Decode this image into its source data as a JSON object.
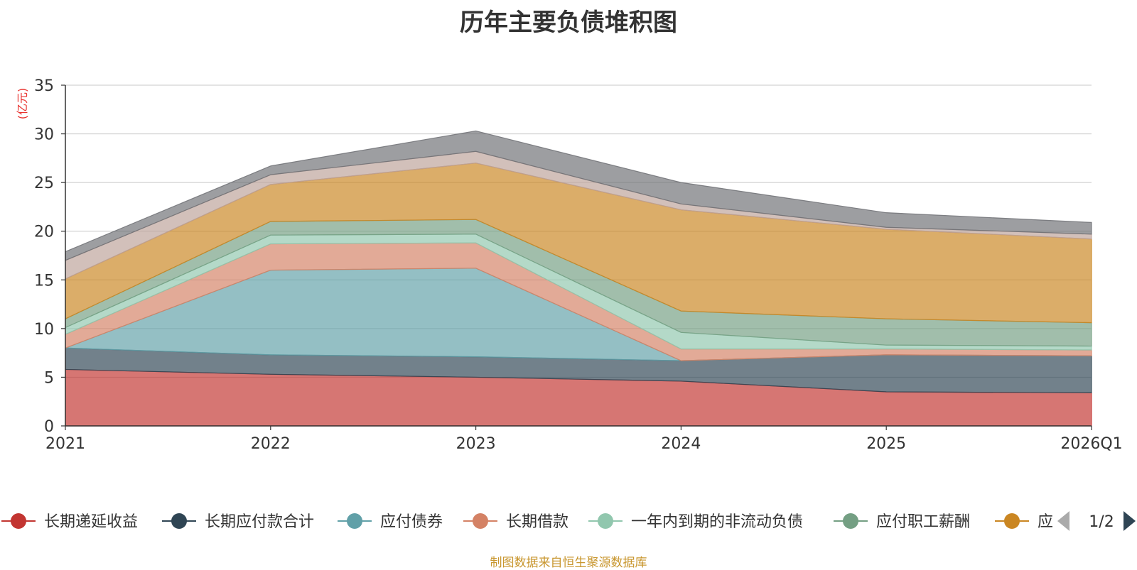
{
  "chart_data": {
    "type": "area",
    "stacked": true,
    "title": "历年主要负债堆积图",
    "ylabel": "(亿元)",
    "xlabel": "",
    "ylim": [
      0,
      35
    ],
    "yticks": [
      0,
      5,
      10,
      15,
      20,
      25,
      30,
      35
    ],
    "categories": [
      "2021",
      "2022",
      "2023",
      "2024",
      "2025",
      "2026Q1"
    ],
    "series": [
      {
        "name": "长期递延收益",
        "color": "#c23531",
        "values": [
          5.8,
          5.3,
          5.0,
          4.6,
          3.5,
          3.4
        ]
      },
      {
        "name": "长期应付款合计",
        "color": "#2f4554",
        "values": [
          2.2,
          2.0,
          2.1,
          2.1,
          3.8,
          3.8
        ]
      },
      {
        "name": "应付债券",
        "color": "#61a0a8",
        "values": [
          0.0,
          8.7,
          9.1,
          0.0,
          0.0,
          0.0
        ]
      },
      {
        "name": "长期借款",
        "color": "#d48265",
        "values": [
          1.4,
          2.7,
          2.6,
          1.2,
          0.6,
          0.6
        ]
      },
      {
        "name": "一年内到期的非流动负债",
        "color": "#91c7ae",
        "values": [
          0.7,
          0.9,
          0.9,
          1.7,
          0.4,
          0.4
        ]
      },
      {
        "name": "应付职工薪酬",
        "color": "#749f83",
        "values": [
          0.9,
          1.4,
          1.5,
          2.2,
          2.7,
          2.4
        ]
      },
      {
        "name": "应",
        "color": "#ca8622",
        "values": [
          4.1,
          3.8,
          5.8,
          10.4,
          9.2,
          8.6
        ]
      },
      {
        "name": "",
        "color": "#bda29a",
        "values": [
          1.9,
          1.0,
          1.2,
          0.6,
          0.2,
          0.5
        ]
      },
      {
        "name": "",
        "color": "#6e7074",
        "values": [
          0.9,
          0.9,
          2.1,
          2.2,
          1.5,
          1.2
        ]
      }
    ],
    "legend": {
      "position": "bottom",
      "page": "1/2"
    },
    "grid": true
  },
  "source": {
    "text": "制图数据来自恒生聚源数据库",
    "color": "#c8962e"
  }
}
